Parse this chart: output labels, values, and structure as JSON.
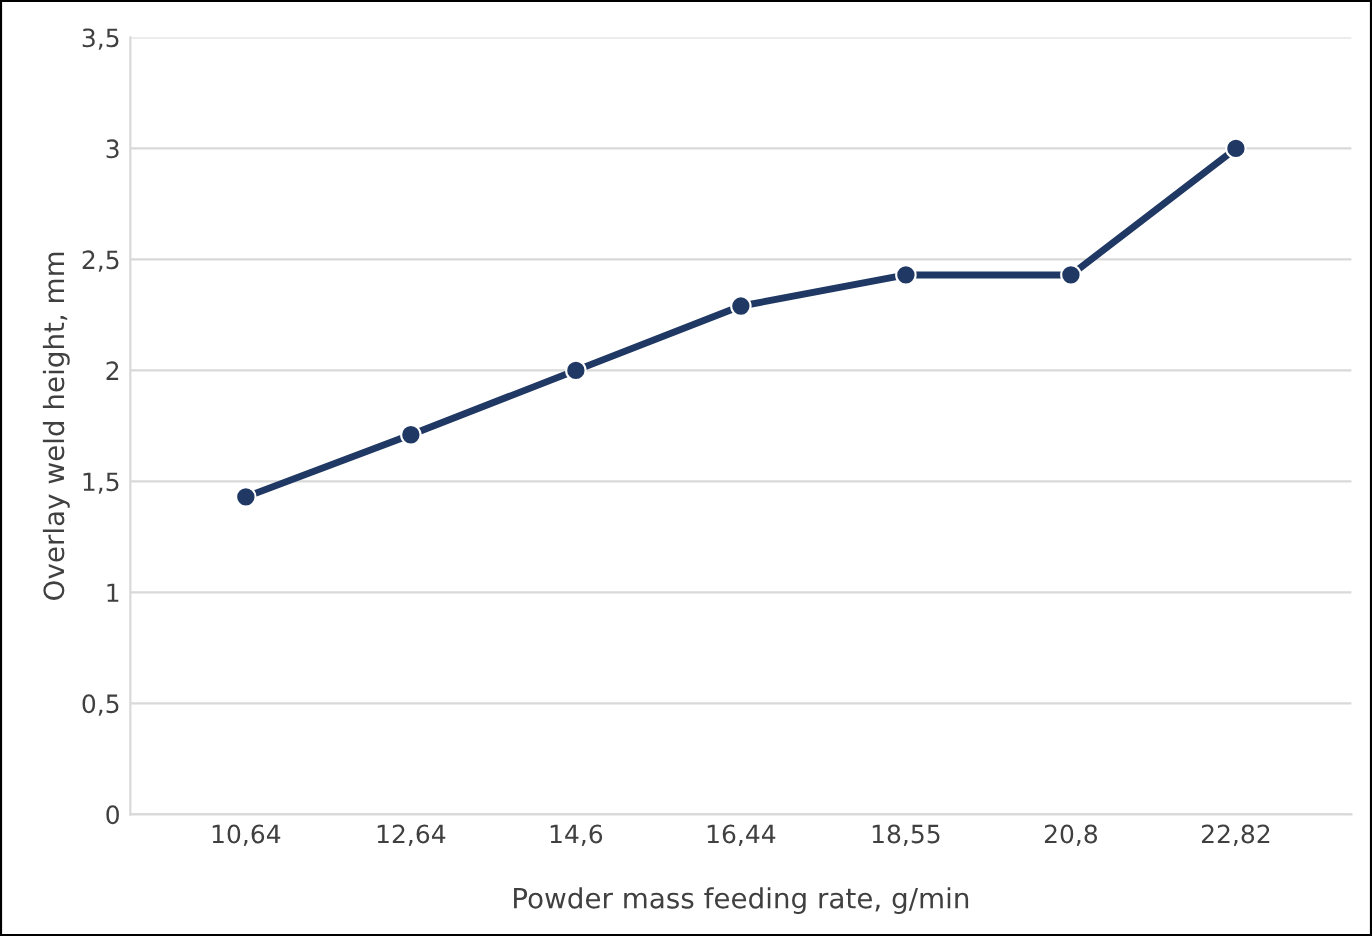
{
  "chart_data": {
    "type": "line",
    "xlabel": "Powder mass feeding rate, g/min",
    "ylabel": "Overlay weld height, mm",
    "categories": [
      "10,64",
      "12,64",
      "14,6",
      "16,44",
      "18,55",
      "20,8",
      "22,82"
    ],
    "series": [
      {
        "color": "#203864",
        "values": [
          1.43,
          1.71,
          2.0,
          2.29,
          2.43,
          2.43,
          3.0
        ]
      }
    ],
    "ylim": [
      0,
      3.5
    ],
    "yticks": [
      {
        "value": 0,
        "label": "0"
      },
      {
        "value": 0.5,
        "label": "0,5"
      },
      {
        "value": 1,
        "label": "1"
      },
      {
        "value": 1.5,
        "label": "1,5"
      },
      {
        "value": 2,
        "label": "2"
      },
      {
        "value": 2.5,
        "label": "2,5"
      },
      {
        "value": 3,
        "label": "3"
      },
      {
        "value": 3.5,
        "label": "3,5"
      }
    ],
    "grid": "y",
    "marker": "circle",
    "line_style": "solid",
    "legend": false
  }
}
